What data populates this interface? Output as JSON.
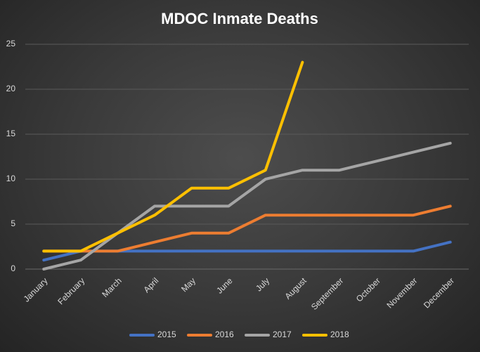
{
  "chart_data": {
    "type": "line",
    "title": "MDOC Inmate Deaths",
    "categories": [
      "January",
      "February",
      "March",
      "April",
      "May",
      "June",
      "July",
      "August",
      "September",
      "October",
      "November",
      "December"
    ],
    "series": [
      {
        "name": "2015",
        "color": "#4472c4",
        "values": [
          1,
          2,
          2,
          2,
          2,
          2,
          2,
          2,
          2,
          2,
          2,
          3
        ]
      },
      {
        "name": "2016",
        "color": "#ed7d31",
        "values": [
          2,
          2,
          2,
          3,
          4,
          4,
          6,
          6,
          6,
          6,
          6,
          7
        ]
      },
      {
        "name": "2017",
        "color": "#a5a5a5",
        "values": [
          0,
          1,
          4,
          7,
          7,
          7,
          10,
          11,
          11,
          12,
          13,
          14
        ]
      },
      {
        "name": "2018",
        "color": "#ffc000",
        "values": [
          2,
          2,
          4,
          6,
          9,
          9,
          11,
          23,
          null,
          null,
          null,
          null
        ]
      }
    ],
    "ylim": [
      0,
      25
    ],
    "yticks": [
      0,
      5,
      10,
      15,
      20,
      25
    ],
    "grid": true,
    "legend": "bottom"
  }
}
